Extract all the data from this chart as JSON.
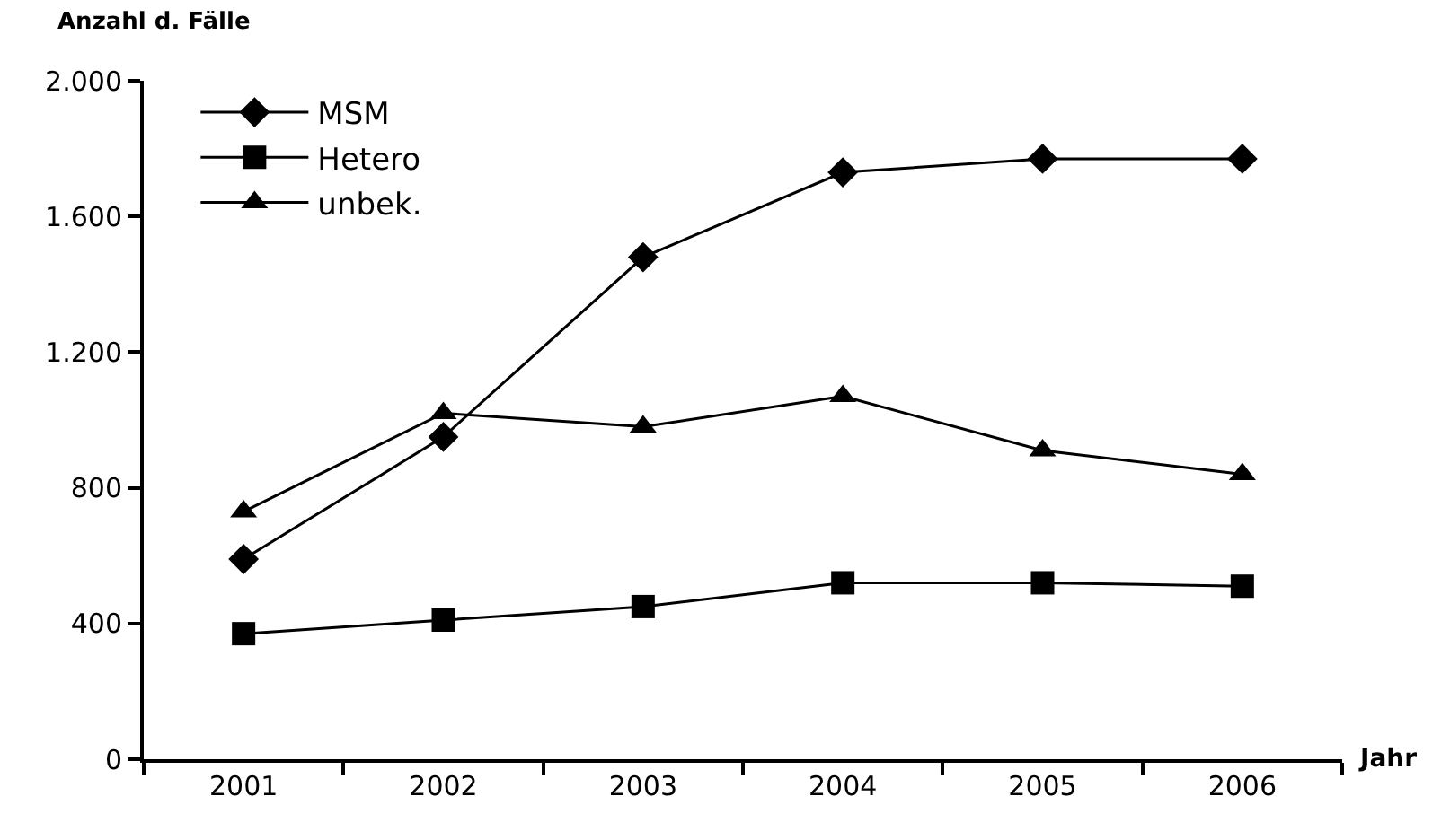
{
  "chart_data": {
    "type": "line",
    "ylabel": "Anzahl d. Fälle",
    "xlabel": "Jahr",
    "categories": [
      "2001",
      "2002",
      "2003",
      "2004",
      "2005",
      "2006"
    ],
    "series": [
      {
        "name": "MSM",
        "color": "#000000",
        "marker": "diamond",
        "values": [
          590,
          950,
          1480,
          1730,
          1770,
          1770
        ]
      },
      {
        "name": "Hetero",
        "color": "#000000",
        "marker": "square",
        "values": [
          370,
          410,
          450,
          520,
          520,
          510
        ]
      },
      {
        "name": "unbek.",
        "color": "#000000",
        "marker": "triangle",
        "values": [
          730,
          1020,
          980,
          1070,
          910,
          840
        ]
      }
    ],
    "ylim": [
      0,
      2000
    ],
    "yticks": [
      0,
      {
        "value": 400,
        "label": "400"
      },
      {
        "value": 800,
        "label": "800"
      },
      {
        "value": 1200,
        "label": "1.200"
      },
      {
        "value": 1600,
        "label": "1.600"
      },
      {
        "value": 2000,
        "label": "2.000"
      }
    ],
    "grid": false,
    "legend": "top left",
    "line_style": "solid"
  }
}
